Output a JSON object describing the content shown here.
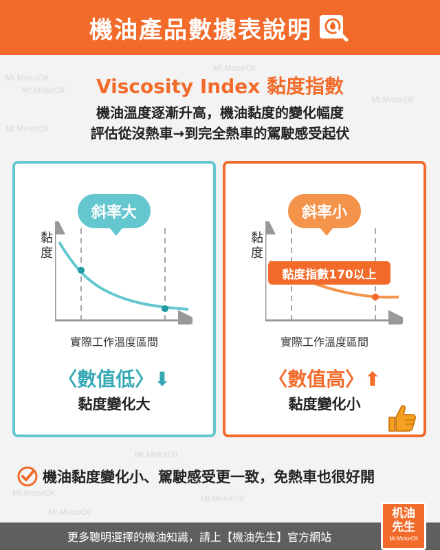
{
  "header": {
    "title": "機油產品數據表說明",
    "icon": "magnifier-oil-drop-icon"
  },
  "watermark": "Mr.MotorOil",
  "subtitle": "Viscosity Index 黏度指數",
  "description": [
    "機油溫度逐漸升高，機油黏度的變化幅度",
    "評估從沒熱車→到完全熱車的駕駛感受起伏"
  ],
  "panels": {
    "left": {
      "bubble": "斜率大",
      "ylabel": "黏度",
      "xlabel": "實際工作溫度區間",
      "value": "〈數值低〉⬇",
      "change": "黏度變化大",
      "color": "#64c7cf"
    },
    "right": {
      "bubble": "斜率小",
      "ylabel": "黏度",
      "xlabel": "實際工作溫度區間",
      "value": "〈數值高〉⬆",
      "change": "黏度變化小",
      "badge": "黏度指數170以上",
      "color": "#f26b2a"
    }
  },
  "conclusion": {
    "icon": "check-circle-icon",
    "text": "機油黏度變化小、駕駛感受更一致，免熱車也很好開"
  },
  "footer": {
    "text": "更多聰明選擇的機油知識，請上【機油先生】官方網站"
  },
  "logo": {
    "line1": "机油",
    "line2": "先生",
    "line3": "Mr.MotorOil"
  }
}
